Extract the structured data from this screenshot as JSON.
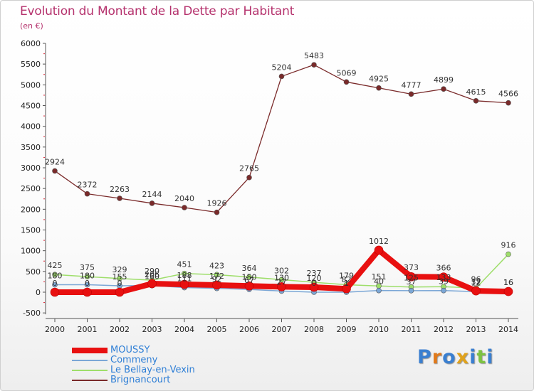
{
  "title": "Evolution du Montant de la Dette par Habitant",
  "unit": "(en €)",
  "brand": {
    "text": "Proxiti",
    "letter_colors": [
      "#3a7fd0",
      "#e07a1c",
      "#3a7fd0",
      "#e0a21c",
      "#3a7fd0",
      "#7cc242",
      "#3a7fd0"
    ]
  },
  "chart_data": {
    "type": "line",
    "title": "Evolution du Montant de la Dette par Habitant",
    "ylabel": "(en €)",
    "xlabel": "",
    "x": [
      "2000",
      "2001",
      "2002",
      "2003",
      "2004",
      "2005",
      "2006",
      "2007",
      "2008",
      "2009",
      "2010",
      "2011",
      "2012",
      "2013",
      "2014"
    ],
    "ylim": [
      -500,
      6000
    ],
    "yticks": [
      -500,
      0,
      500,
      1000,
      1500,
      2000,
      2500,
      3000,
      3500,
      4000,
      4500,
      5000,
      5500,
      6000
    ],
    "grid": false,
    "legend_position": "bottom-left",
    "series": [
      {
        "name": "MOUSSY",
        "color": "#e81010",
        "values": [
          0,
          0,
          0,
          206,
          188,
          172,
          150,
          130,
          120,
          82,
          1012,
          373,
          366,
          32,
          16
        ],
        "labels": [
          "0",
          "0",
          "0",
          "206",
          "188",
          "172",
          "150",
          "130",
          "120",
          "82",
          "1012",
          "373",
          "366",
          "32",
          "16"
        ]
      },
      {
        "name": "Commeny",
        "color": "#7ba7d6",
        "values": [
          180,
          180,
          155,
          160,
          111,
          92,
          67,
          27,
          0,
          1,
          40,
          37,
          39,
          12,
          16
        ],
        "labels": [
          "180",
          "180",
          "155",
          "160",
          "111",
          "92",
          "67",
          "27",
          "0",
          "1",
          "40",
          "37",
          "39",
          "12",
          "16"
        ]
      },
      {
        "name": "Le Bellay-en-Vexin",
        "color": "#9ede6a",
        "values": [
          425,
          375,
          329,
          290,
          451,
          423,
          364,
          302,
          237,
          179,
          151,
          125,
          133,
          96,
          916
        ],
        "labels": [
          "425",
          "375",
          "329",
          "290",
          "451",
          "423",
          "364",
          "302",
          "237",
          "179",
          "151",
          "125",
          "133",
          "96",
          "916"
        ]
      },
      {
        "name": "Brignancourt",
        "color": "#7a2a2a",
        "values": [
          2924,
          2372,
          2263,
          2144,
          2040,
          1926,
          2765,
          5204,
          5483,
          5069,
          4925,
          4777,
          4899,
          4615,
          4566
        ],
        "labels": [
          "2924",
          "2372",
          "2263",
          "2144",
          "2040",
          "1926",
          "2765",
          "5204",
          "5483",
          "5069",
          "4925",
          "4777",
          "4899",
          "4615",
          "4566"
        ]
      }
    ]
  }
}
